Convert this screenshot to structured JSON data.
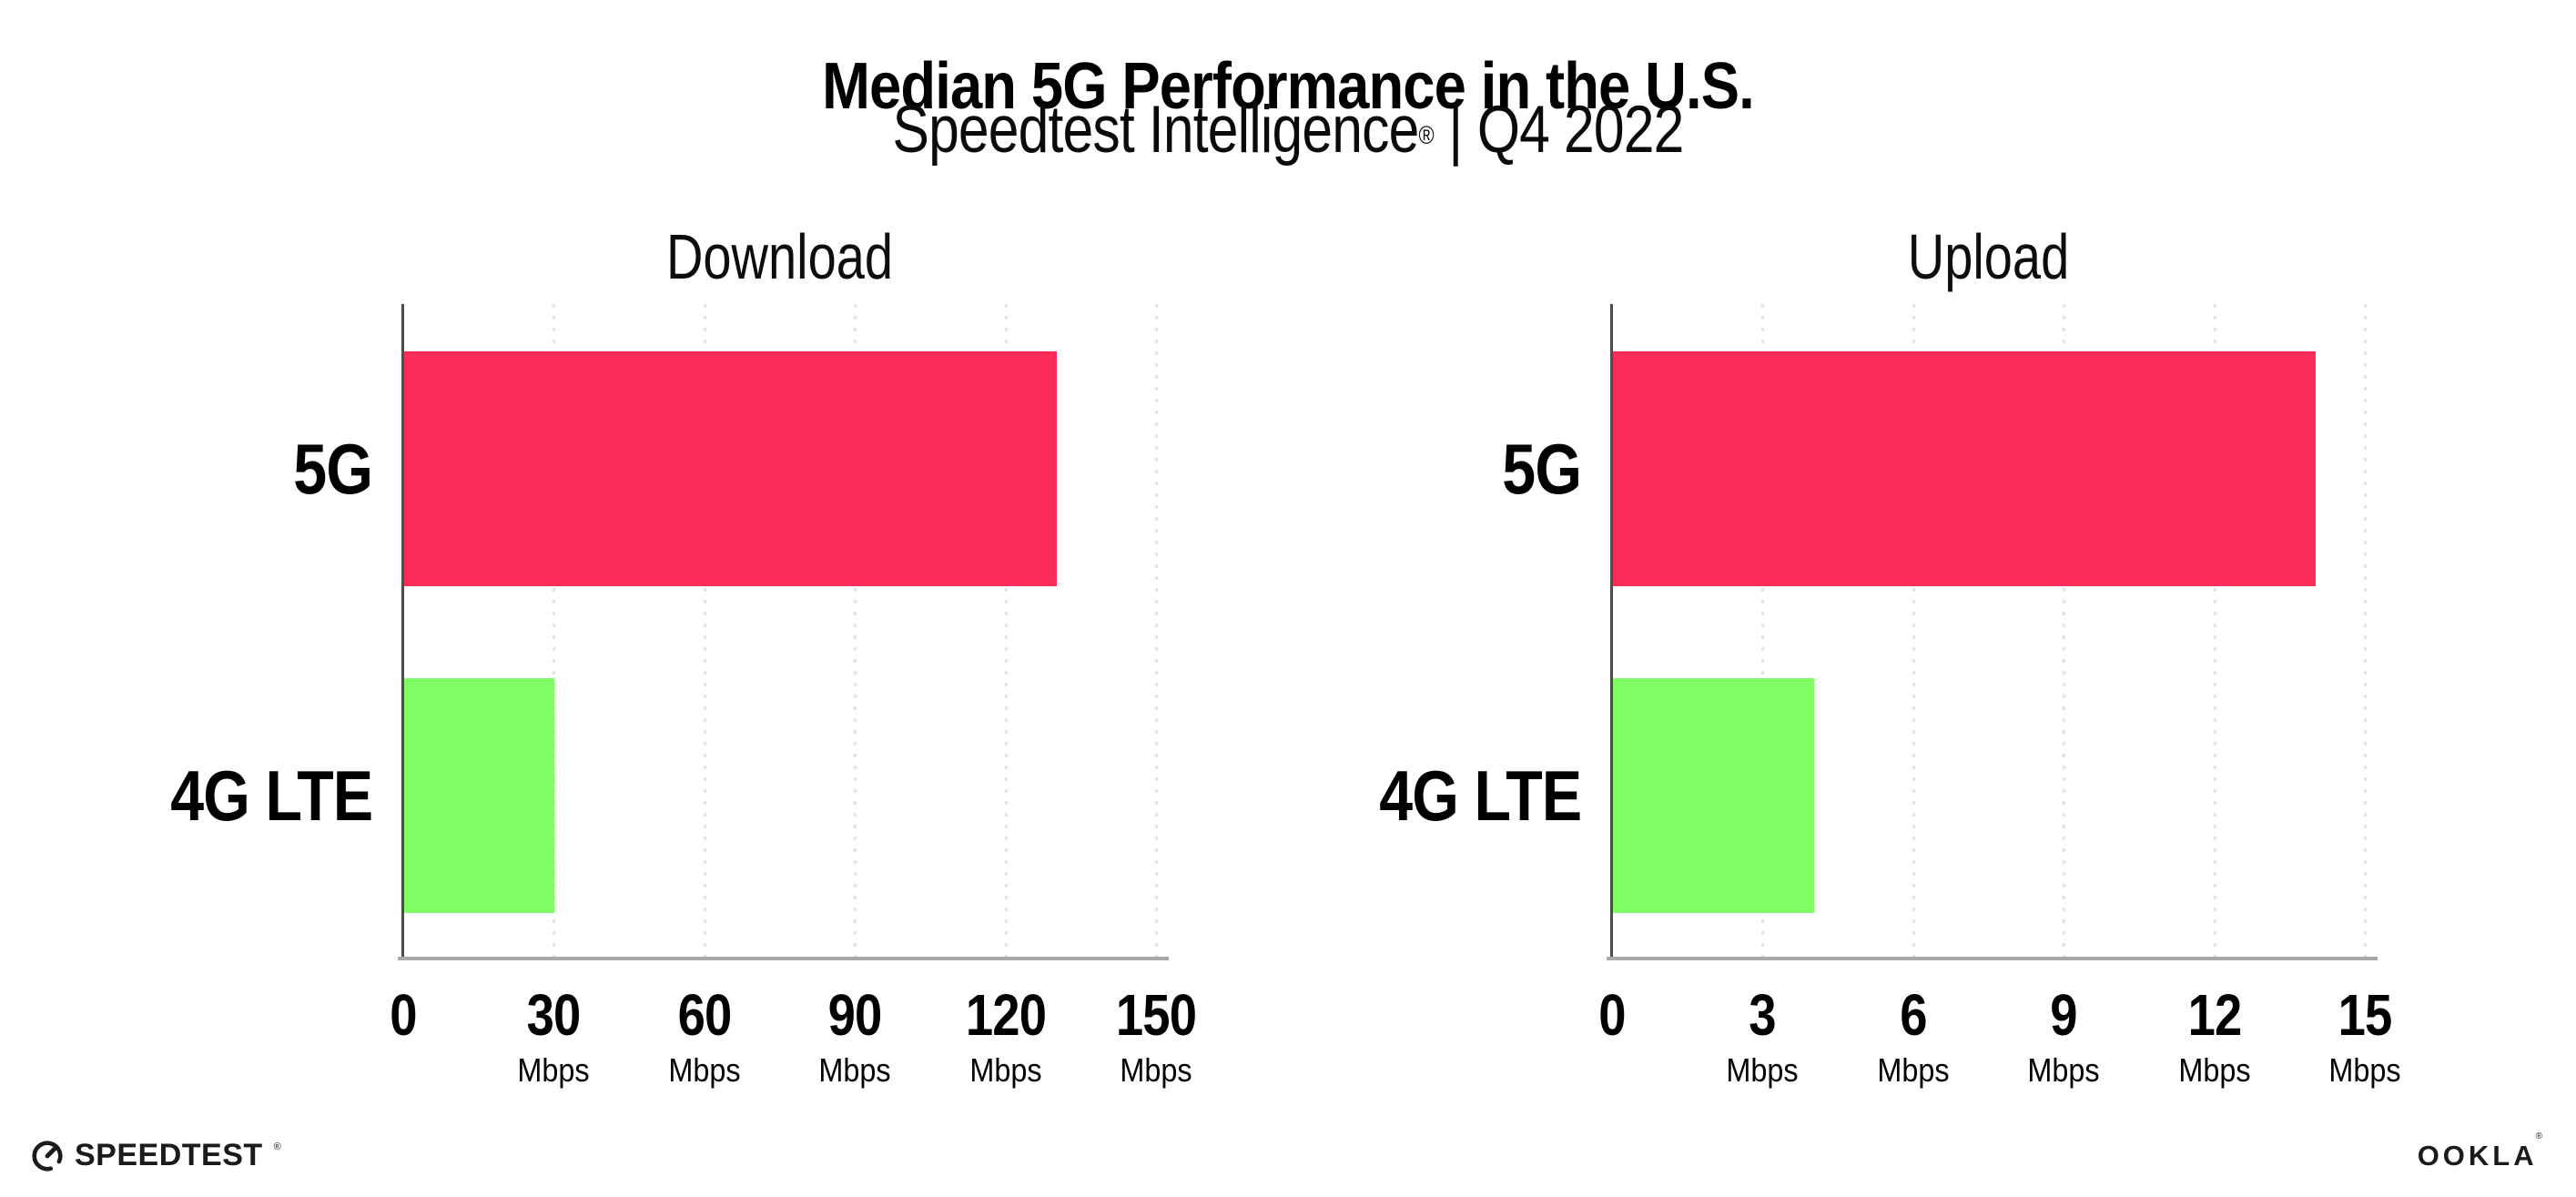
{
  "header": {
    "title": "Median 5G Performance in the U.S.",
    "subtitle_brand": "Speedtest Intelligence",
    "subtitle_reg": "®",
    "subtitle_sep": "|",
    "subtitle_period": "Q4 2022"
  },
  "colors": {
    "bar_5g": "#fc2b57",
    "bar_4g_lte": "#80fc64",
    "gridline": "#e2e3ee",
    "y_axis": "#4d4d4d",
    "x_axis": "#a8a8a8",
    "text": "#000000"
  },
  "chart_data": [
    {
      "type": "bar",
      "orientation": "horizontal",
      "title": "Download",
      "categories": [
        "5G",
        "4G LTE"
      ],
      "values": [
        130,
        30
      ],
      "value_unit": "Mbps",
      "xlim": [
        0,
        150
      ],
      "ticks": [
        0,
        30,
        60,
        90,
        120,
        150
      ],
      "tick_unit": "Mbps",
      "grid": "vertical-dotted",
      "legend": "none"
    },
    {
      "type": "bar",
      "orientation": "horizontal",
      "title": "Upload",
      "categories": [
        "5G",
        "4G LTE"
      ],
      "values": [
        14,
        4
      ],
      "value_unit": "Mbps",
      "xlim": [
        0,
        15
      ],
      "ticks": [
        0,
        3,
        6,
        9,
        12,
        15
      ],
      "tick_unit": "Mbps",
      "grid": "vertical-dotted",
      "legend": "none"
    }
  ],
  "footer": {
    "speedtest_label": "SPEEDTEST",
    "speedtest_reg": "®",
    "ookla_label": "OOKLA",
    "ookla_reg": "®"
  }
}
